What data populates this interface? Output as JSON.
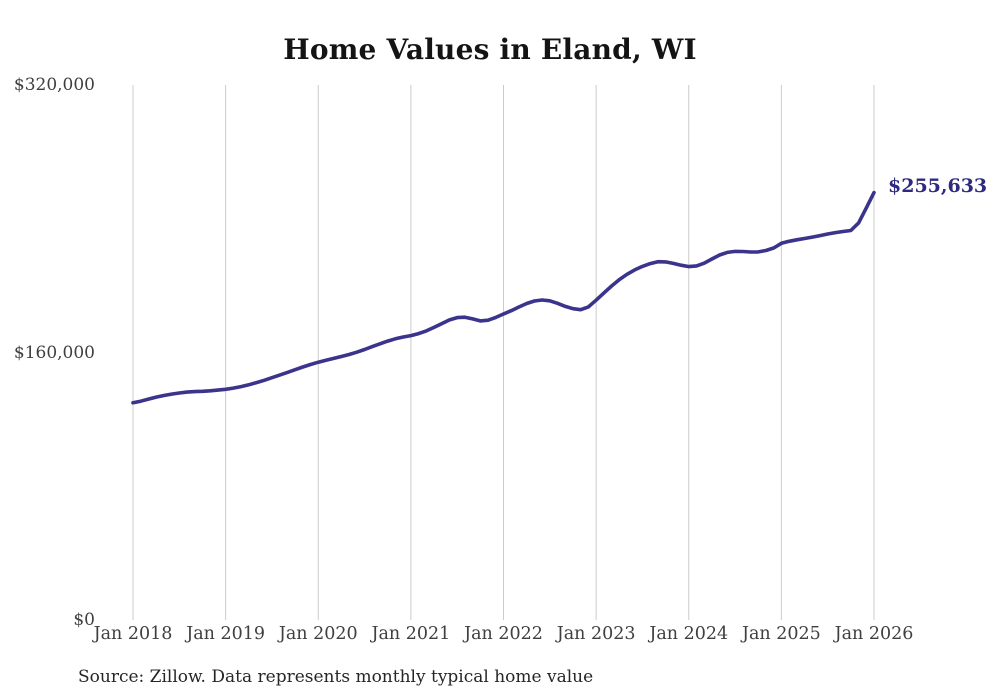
{
  "chart_data": {
    "type": "line",
    "title": "Home Values in Eland, WI",
    "source": "Source: Zillow. Data represents monthly typical home value",
    "end_label": "$255,633",
    "last_value": 255633,
    "x_ticks": [
      "Jan 2018",
      "Jan 2019",
      "Jan 2020",
      "Jan 2021",
      "Jan 2022",
      "Jan 2023",
      "Jan 2024",
      "Jan 2025",
      "Jan 2026"
    ],
    "y_ticks": [
      {
        "label": "$0",
        "value": 0
      },
      {
        "label": "$160,000",
        "value": 160000
      },
      {
        "label": "$320,000",
        "value": 320000
      }
    ],
    "ylim": [
      0,
      320000
    ],
    "x_start": "Jan 2018",
    "x_interval": "monthly",
    "grid": "vertical-only",
    "legend": "none",
    "series": [
      {
        "name": "Monthly typical home value",
        "values": [
          129900,
          130900,
          132100,
          133300,
          134300,
          135100,
          135800,
          136300,
          136600,
          136800,
          137100,
          137500,
          138000,
          138700,
          139600,
          140700,
          142000,
          143400,
          144900,
          146500,
          148100,
          149700,
          151300,
          152800,
          154200,
          155400,
          156500,
          157600,
          158800,
          160200,
          161800,
          163500,
          165200,
          166800,
          168200,
          169300,
          170100,
          171300,
          172900,
          175000,
          177300,
          179500,
          180900,
          181100,
          180100,
          178900,
          179300,
          181000,
          183000,
          185000,
          187200,
          189300,
          190800,
          191400,
          190900,
          189400,
          187600,
          186200,
          185600,
          187300,
          191300,
          195500,
          199800,
          203600,
          206800,
          209400,
          211500,
          213200,
          214300,
          214200,
          213300,
          212200,
          211400,
          211800,
          213400,
          215900,
          218300,
          219900,
          220500,
          220400,
          220100,
          220200,
          221000,
          222500,
          225300,
          226500,
          227400,
          228200,
          229000,
          229900,
          230900,
          231700,
          232400,
          233000,
          237500,
          246500,
          255633
        ]
      }
    ]
  },
  "colors": {
    "line": "#3a348c",
    "end_label": "#2e2a80",
    "grid": "#cccccc",
    "axis_text": "#3f3f3f",
    "title_text": "#141414",
    "source_text": "#262626",
    "background": "#ffffff"
  }
}
